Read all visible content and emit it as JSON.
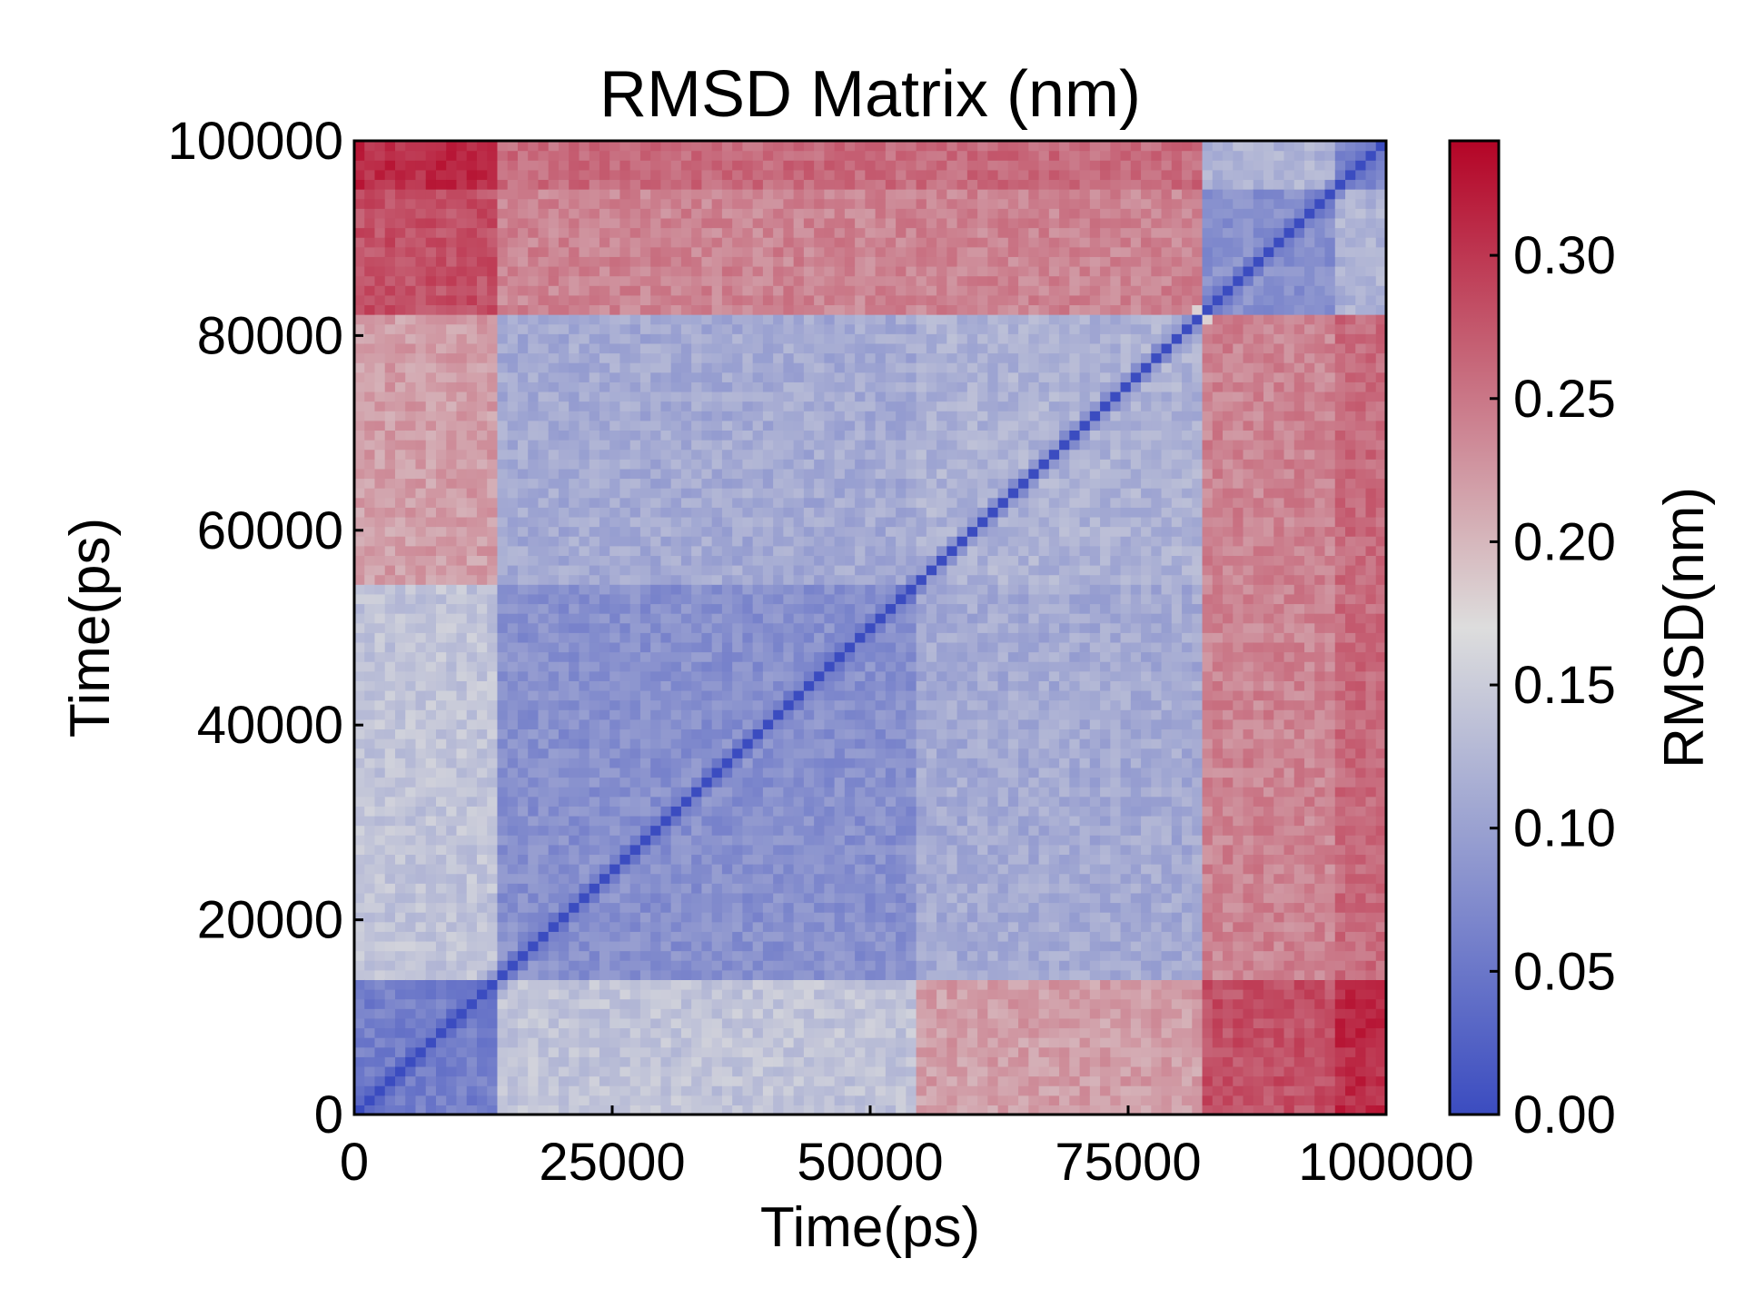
{
  "chart_data": {
    "type": "heatmap",
    "title": "RMSD Matrix (nm)",
    "xlabel": "Time(ps)",
    "ylabel": "Time(ps)",
    "xlim": [
      0,
      100000
    ],
    "ylim": [
      0,
      100000
    ],
    "x_ticks": [
      "0",
      "25000",
      "50000",
      "75000",
      "100000"
    ],
    "y_ticks": [
      "0",
      "20000",
      "40000",
      "60000",
      "80000",
      "100000"
    ],
    "colorbar": {
      "label": "RMSD(nm)",
      "range": [
        0.0,
        0.34
      ],
      "ticks": [
        "0.00",
        "0.05",
        "0.10",
        "0.15",
        "0.20",
        "0.25",
        "0.30"
      ],
      "colormap": "coolwarm",
      "low_color": "#3b4cc0",
      "mid_color": "#dddddd",
      "high_color": "#b40426"
    },
    "grid": false,
    "frames": 101,
    "frame_interval_ps": 1000,
    "states": [
      {
        "from_ps": 0,
        "to_ps": 14000
      },
      {
        "from_ps": 14000,
        "to_ps": 55000
      },
      {
        "from_ps": 55000,
        "to_ps": 83000
      },
      {
        "from_ps": 83000,
        "to_ps": 96000
      },
      {
        "from_ps": 96000,
        "to_ps": 100000
      }
    ],
    "block_rmsd_nm": [
      [
        0.06,
        0.14,
        0.22,
        0.28,
        0.31
      ],
      [
        0.14,
        0.08,
        0.11,
        0.24,
        0.26
      ],
      [
        0.22,
        0.11,
        0.12,
        0.24,
        0.26
      ],
      [
        0.28,
        0.24,
        0.24,
        0.08,
        0.12
      ],
      [
        0.31,
        0.26,
        0.26,
        0.12,
        0.07
      ]
    ]
  }
}
